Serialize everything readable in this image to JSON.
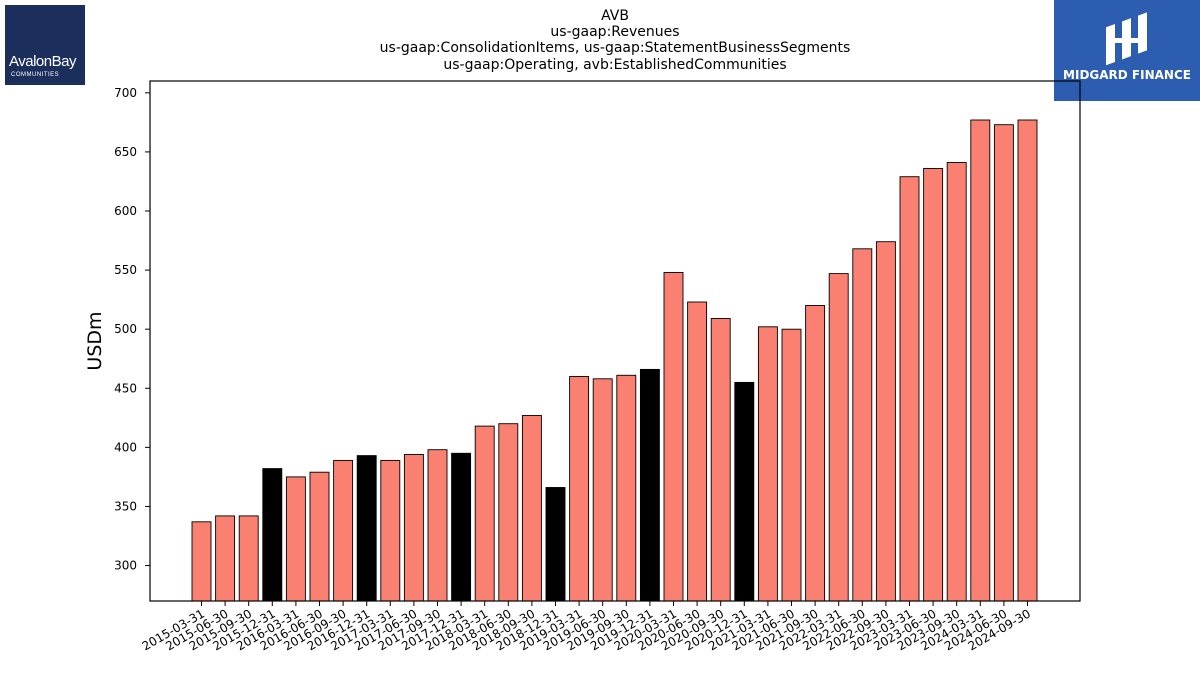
{
  "header": {
    "title_lines": [
      "AVB",
      "us-gaap:Revenues",
      "us-gaap:ConsolidationItems, us-gaap:StatementBusinessSegments",
      "us-gaap:Operating, avb:EstablishedCommunities"
    ]
  },
  "logos": {
    "left": {
      "name": "AvalonBay",
      "sub": "COMMUNITIES",
      "bg": "#1c2f5c"
    },
    "right": {
      "name": "MIDGARD FINANCE",
      "bg": "#2c5db0"
    }
  },
  "chart_data": {
    "type": "bar",
    "ylabel": "USDm",
    "xlabel": "",
    "ylim": [
      270,
      710
    ],
    "yticks": [
      300,
      350,
      400,
      450,
      500,
      550,
      600,
      650,
      700
    ],
    "colors": {
      "regular": "#fa8072",
      "highlight": "#000000",
      "edge": "#000000"
    },
    "categories": [
      "2015-03-31",
      "2015-06-30",
      "2015-09-30",
      "2015-12-31",
      "2016-03-31",
      "2016-06-30",
      "2016-09-30",
      "2016-12-31",
      "2017-03-31",
      "2017-06-30",
      "2017-09-30",
      "2017-12-31",
      "2018-03-31",
      "2018-06-30",
      "2018-09-30",
      "2018-12-31",
      "2019-03-31",
      "2019-06-30",
      "2019-09-30",
      "2019-12-31",
      "2020-03-31",
      "2020-06-30",
      "2020-09-30",
      "2020-12-31",
      "2021-03-31",
      "2021-06-30",
      "2021-09-30",
      "2022-03-31",
      "2022-06-30",
      "2022-09-30",
      "2023-03-31",
      "2023-06-30",
      "2023-09-30",
      "2024-03-31",
      "2024-06-30",
      "2024-09-30"
    ],
    "values": [
      337,
      342,
      342,
      382,
      375,
      379,
      389,
      393,
      389,
      394,
      398,
      395,
      418,
      420,
      427,
      366,
      460,
      458,
      461,
      466,
      548,
      523,
      509,
      455,
      502,
      500,
      520,
      547,
      568,
      574,
      629,
      636,
      641,
      677,
      673,
      677
    ],
    "highlight": [
      false,
      false,
      false,
      true,
      false,
      false,
      false,
      true,
      false,
      false,
      false,
      true,
      false,
      false,
      false,
      true,
      false,
      false,
      false,
      true,
      false,
      false,
      false,
      true,
      false,
      false,
      false,
      false,
      false,
      false,
      false,
      false,
      false,
      false,
      false,
      false
    ]
  }
}
